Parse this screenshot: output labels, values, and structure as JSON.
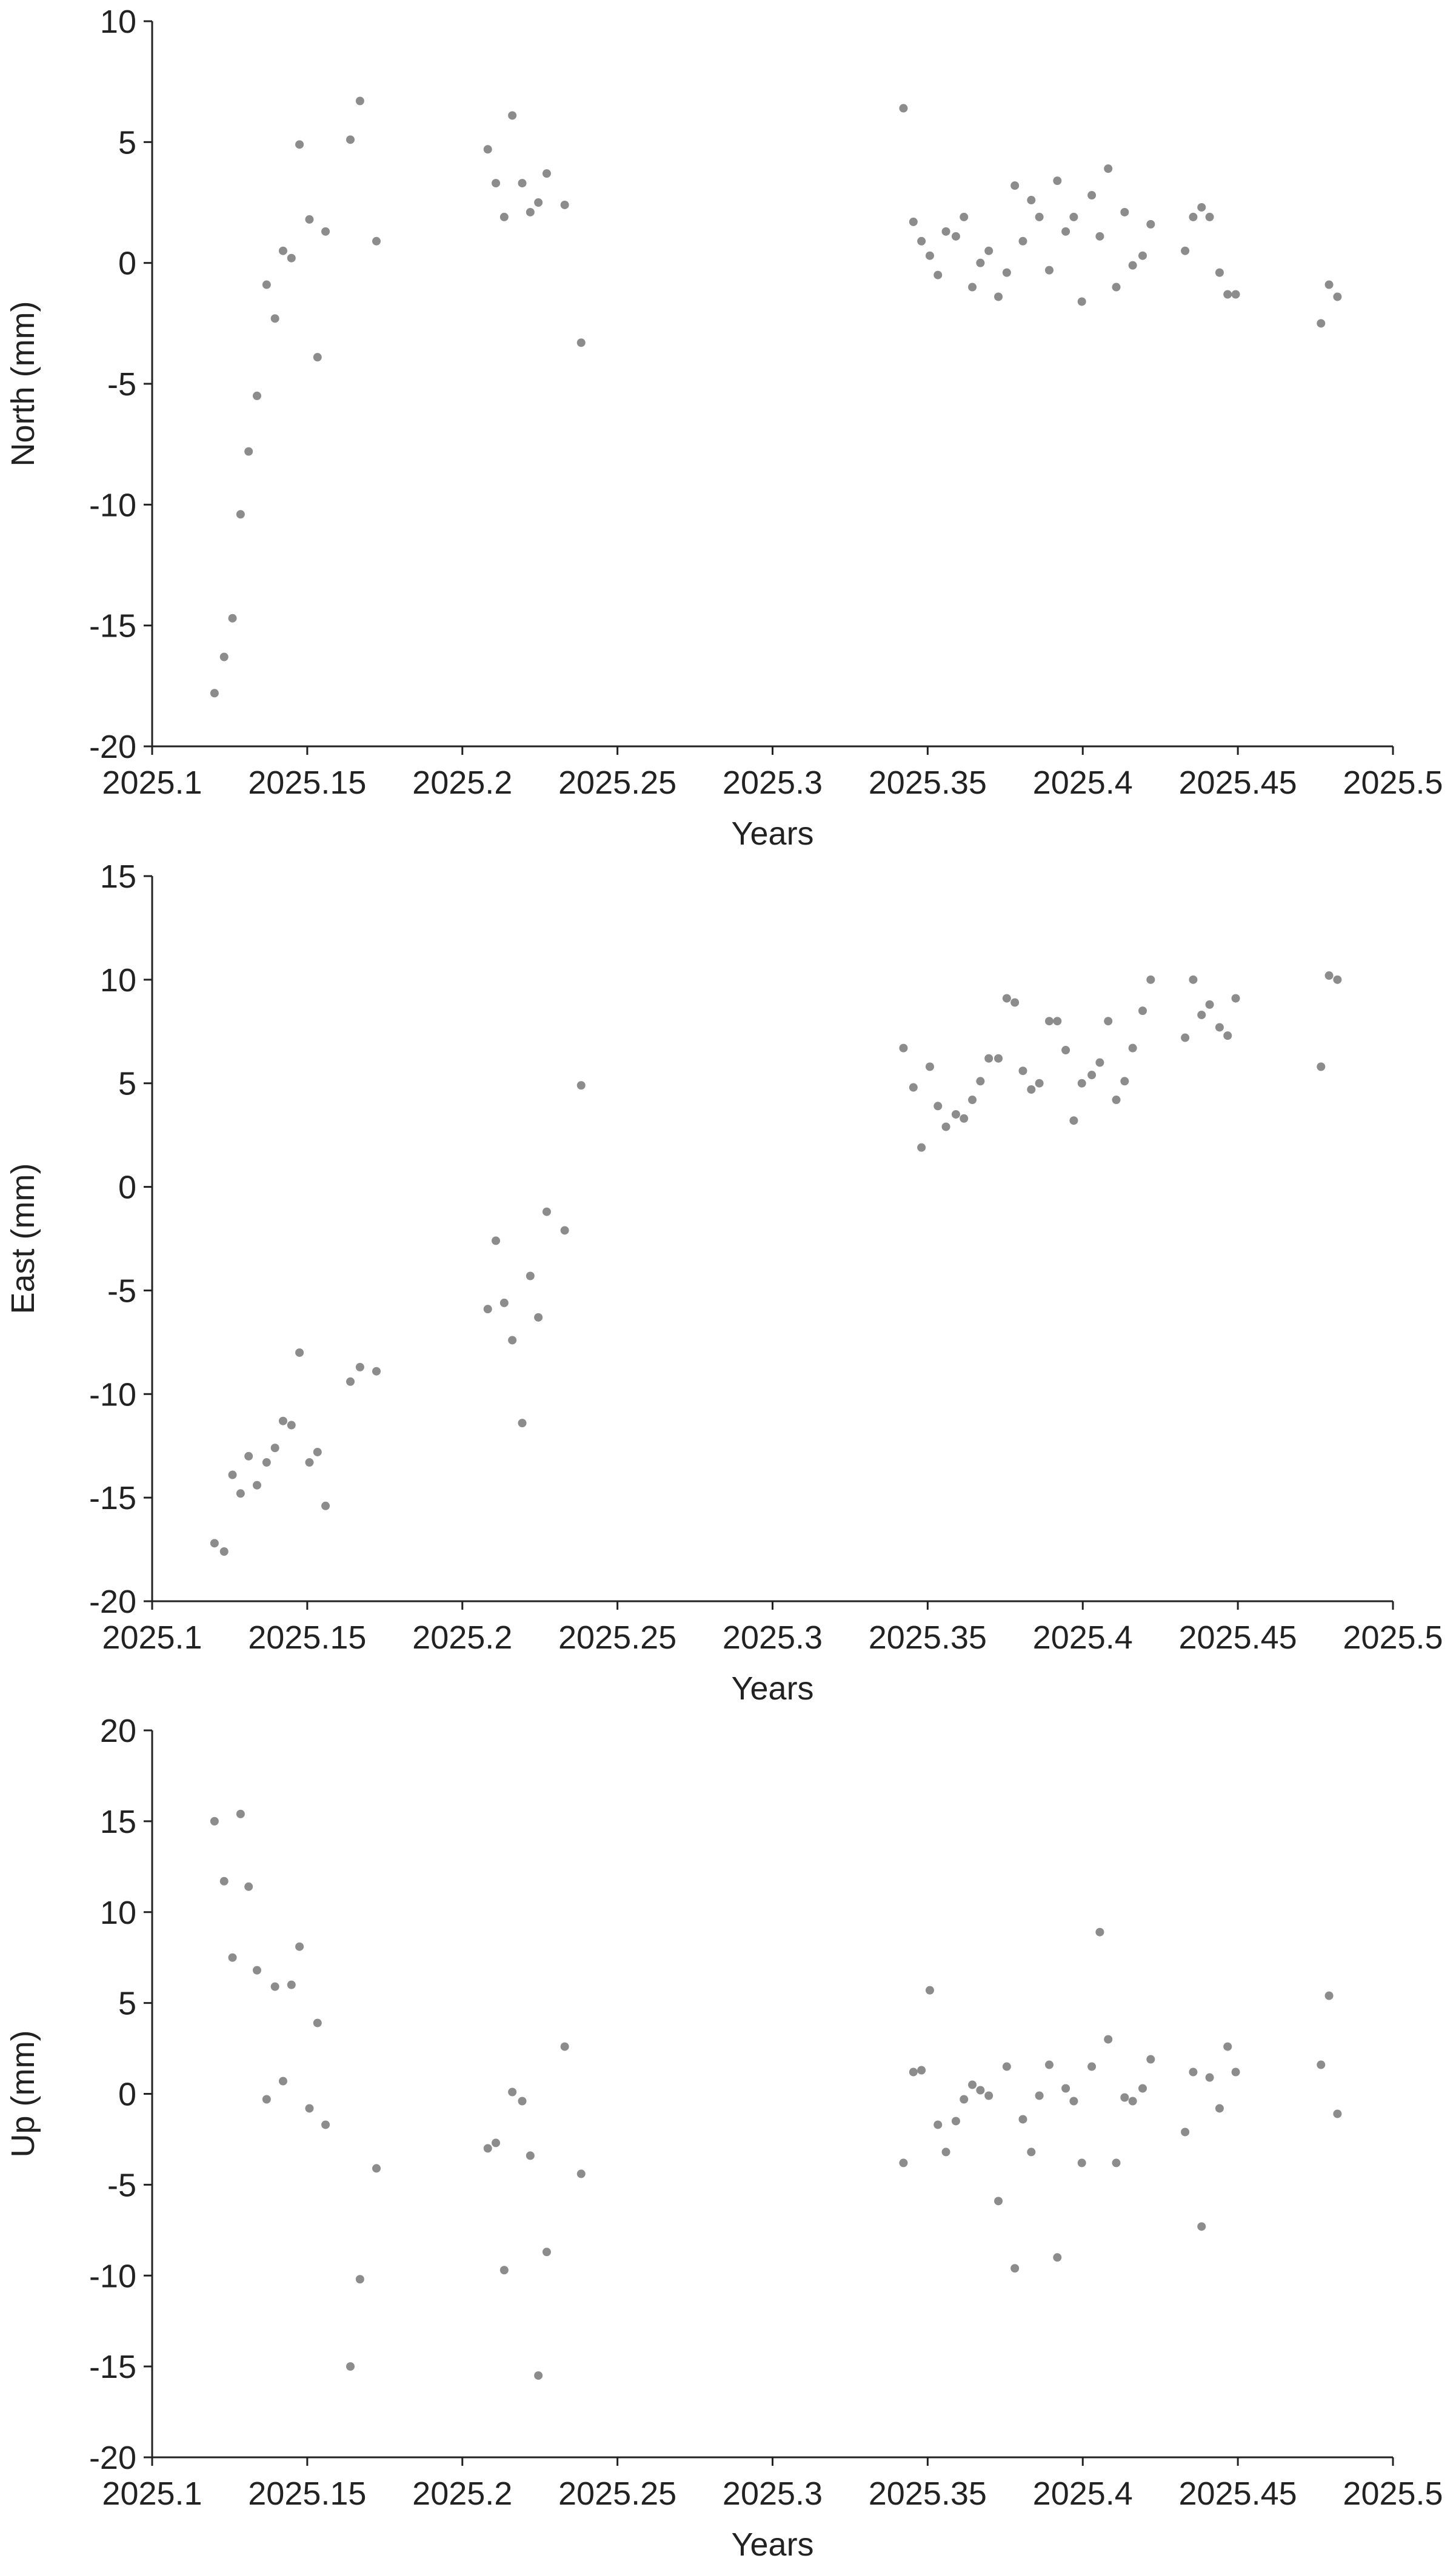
{
  "chart_data": [
    {
      "type": "scatter",
      "xlabel": "Years",
      "ylabel": "North (mm)",
      "color": "#8c8c8c",
      "xlim": [
        2025.1,
        2025.5
      ],
      "ylim": [
        -20,
        10
      ],
      "xticks": [
        2025.1,
        2025.15,
        2025.2,
        2025.25,
        2025.3,
        2025.35,
        2025.4,
        2025.45,
        2025.5
      ],
      "yticks": [
        -20,
        -15,
        -10,
        -5,
        0,
        5,
        10
      ],
      "x": [
        2025.1201,
        2025.1232,
        2025.1259,
        2025.1285,
        2025.1311,
        2025.1338,
        2025.1369,
        2025.1396,
        2025.1422,
        2025.1449,
        2025.1475,
        2025.1507,
        2025.1533,
        2025.1559,
        2025.1639,
        2025.167,
        2025.1723,
        2025.2082,
        2025.2108,
        2025.2135,
        2025.2161,
        2025.2193,
        2025.2219,
        2025.2245,
        2025.2272,
        2025.233,
        2025.2383,
        2025.3422,
        2025.3454,
        2025.348,
        2025.3507,
        2025.3533,
        2025.3559,
        2025.3591,
        2025.3617,
        2025.3644,
        2025.367,
        2025.3697,
        2025.3728,
        2025.3755,
        2025.3781,
        2025.3807,
        2025.3834,
        2025.386,
        2025.3892,
        2025.3918,
        2025.3945,
        2025.3971,
        2025.3997,
        2025.4029,
        2025.4055,
        2025.4082,
        2025.4108,
        2025.4135,
        2025.4161,
        2025.4193,
        2025.4219,
        2025.433,
        2025.4356,
        2025.4383,
        2025.4409,
        2025.4441,
        2025.4467,
        2025.4493,
        2025.4768,
        2025.4794,
        2025.4821
      ],
      "values": [
        -17.8,
        -16.3,
        -14.7,
        -10.4,
        -7.8,
        -5.5,
        -0.9,
        -2.3,
        0.5,
        0.2,
        4.9,
        1.8,
        -3.9,
        1.3,
        5.1,
        6.7,
        0.9,
        4.7,
        3.3,
        1.9,
        6.1,
        3.3,
        2.1,
        2.5,
        3.7,
        2.4,
        -3.3,
        6.4,
        1.7,
        0.9,
        0.3,
        -0.5,
        1.3,
        1.1,
        1.9,
        -1.0,
        0.0,
        0.5,
        -1.4,
        -0.4,
        3.2,
        0.9,
        2.6,
        1.9,
        -0.3,
        3.4,
        1.3,
        1.9,
        -1.6,
        2.8,
        1.1,
        3.9,
        -1.0,
        2.1,
        -0.1,
        0.3,
        1.6,
        0.5,
        1.9,
        2.3,
        1.9,
        -0.4,
        -1.3,
        -1.3,
        -2.5,
        -0.9,
        -1.4
      ]
    },
    {
      "type": "scatter",
      "xlabel": "Years",
      "ylabel": "East (mm)",
      "color": "#8c8c8c",
      "xlim": [
        2025.1,
        2025.5
      ],
      "ylim": [
        -20,
        15
      ],
      "xticks": [
        2025.1,
        2025.15,
        2025.2,
        2025.25,
        2025.3,
        2025.35,
        2025.4,
        2025.45,
        2025.5
      ],
      "yticks": [
        -20,
        -15,
        -10,
        -5,
        0,
        5,
        10,
        15
      ],
      "x": [
        2025.1201,
        2025.1232,
        2025.1259,
        2025.1285,
        2025.1311,
        2025.1338,
        2025.1369,
        2025.1396,
        2025.1422,
        2025.1449,
        2025.1475,
        2025.1507,
        2025.1533,
        2025.1559,
        2025.1639,
        2025.167,
        2025.1723,
        2025.2082,
        2025.2108,
        2025.2135,
        2025.2161,
        2025.2193,
        2025.2219,
        2025.2245,
        2025.2272,
        2025.233,
        2025.2383,
        2025.3422,
        2025.3454,
        2025.348,
        2025.3507,
        2025.3533,
        2025.3559,
        2025.3591,
        2025.3617,
        2025.3644,
        2025.367,
        2025.3697,
        2025.3728,
        2025.3755,
        2025.3781,
        2025.3807,
        2025.3834,
        2025.386,
        2025.3892,
        2025.3918,
        2025.3945,
        2025.3971,
        2025.3997,
        2025.4029,
        2025.4055,
        2025.4082,
        2025.4108,
        2025.4135,
        2025.4161,
        2025.4193,
        2025.4219,
        2025.433,
        2025.4356,
        2025.4383,
        2025.4409,
        2025.4441,
        2025.4467,
        2025.4493,
        2025.4768,
        2025.4794,
        2025.4821
      ],
      "values": [
        -17.2,
        -17.6,
        -13.9,
        -14.8,
        -13.0,
        -14.4,
        -13.3,
        -12.6,
        -11.3,
        -11.5,
        -8.0,
        -13.3,
        -12.8,
        -15.4,
        -9.4,
        -8.7,
        -8.9,
        -5.9,
        -2.6,
        -5.6,
        -7.4,
        -11.4,
        -4.3,
        -6.3,
        -1.2,
        -2.1,
        4.9,
        6.7,
        4.8,
        1.9,
        5.8,
        3.9,
        2.9,
        3.5,
        3.3,
        4.2,
        5.1,
        6.2,
        6.2,
        9.1,
        8.9,
        5.6,
        4.7,
        5.0,
        8.0,
        8.0,
        6.6,
        3.2,
        5.0,
        5.4,
        6.0,
        8.0,
        4.2,
        5.1,
        6.7,
        8.5,
        10.0,
        7.2,
        10.0,
        8.3,
        8.8,
        7.7,
        7.3,
        9.1,
        5.8,
        10.2,
        10.0
      ]
    },
    {
      "type": "scatter",
      "xlabel": "Years",
      "ylabel": "Up (mm)",
      "color": "#8c8c8c",
      "xlim": [
        2025.1,
        2025.5
      ],
      "ylim": [
        -20,
        20
      ],
      "xticks": [
        2025.1,
        2025.15,
        2025.2,
        2025.25,
        2025.3,
        2025.35,
        2025.4,
        2025.45,
        2025.5
      ],
      "yticks": [
        -20,
        -15,
        -10,
        -5,
        0,
        5,
        10,
        15,
        20
      ],
      "x": [
        2025.1201,
        2025.1232,
        2025.1259,
        2025.1285,
        2025.1311,
        2025.1338,
        2025.1369,
        2025.1396,
        2025.1422,
        2025.1449,
        2025.1475,
        2025.1507,
        2025.1533,
        2025.1559,
        2025.1639,
        2025.167,
        2025.1723,
        2025.2082,
        2025.2108,
        2025.2135,
        2025.2161,
        2025.2193,
        2025.2219,
        2025.2245,
        2025.2272,
        2025.233,
        2025.2383,
        2025.3422,
        2025.3454,
        2025.348,
        2025.3507,
        2025.3533,
        2025.3559,
        2025.3591,
        2025.3617,
        2025.3644,
        2025.367,
        2025.3697,
        2025.3728,
        2025.3755,
        2025.3781,
        2025.3807,
        2025.3834,
        2025.386,
        2025.3892,
        2025.3918,
        2025.3945,
        2025.3971,
        2025.3997,
        2025.4029,
        2025.4055,
        2025.4082,
        2025.4108,
        2025.4135,
        2025.4161,
        2025.4193,
        2025.4219,
        2025.433,
        2025.4356,
        2025.4383,
        2025.4409,
        2025.4441,
        2025.4467,
        2025.4493,
        2025.4768,
        2025.4794,
        2025.4821
      ],
      "values": [
        15.0,
        11.7,
        7.5,
        15.4,
        11.4,
        6.8,
        -0.3,
        5.9,
        0.7,
        6.0,
        8.1,
        -0.8,
        3.9,
        -1.7,
        -15.0,
        -10.2,
        -4.1,
        -3.0,
        -2.7,
        -9.7,
        0.1,
        -0.4,
        -3.4,
        -15.5,
        -8.7,
        2.6,
        -4.4,
        -3.8,
        1.2,
        1.3,
        5.7,
        -1.7,
        -3.2,
        -1.5,
        -0.3,
        0.5,
        0.2,
        -0.1,
        -5.9,
        1.5,
        -9.6,
        -1.4,
        -3.2,
        -0.1,
        1.6,
        -9.0,
        0.3,
        -0.4,
        -3.8,
        1.5,
        8.9,
        3.0,
        -3.8,
        -0.2,
        -0.4,
        0.3,
        1.9,
        -2.1,
        1.2,
        -7.3,
        0.9,
        -0.8,
        2.6,
        1.2,
        1.6,
        5.4,
        -1.1
      ]
    }
  ]
}
